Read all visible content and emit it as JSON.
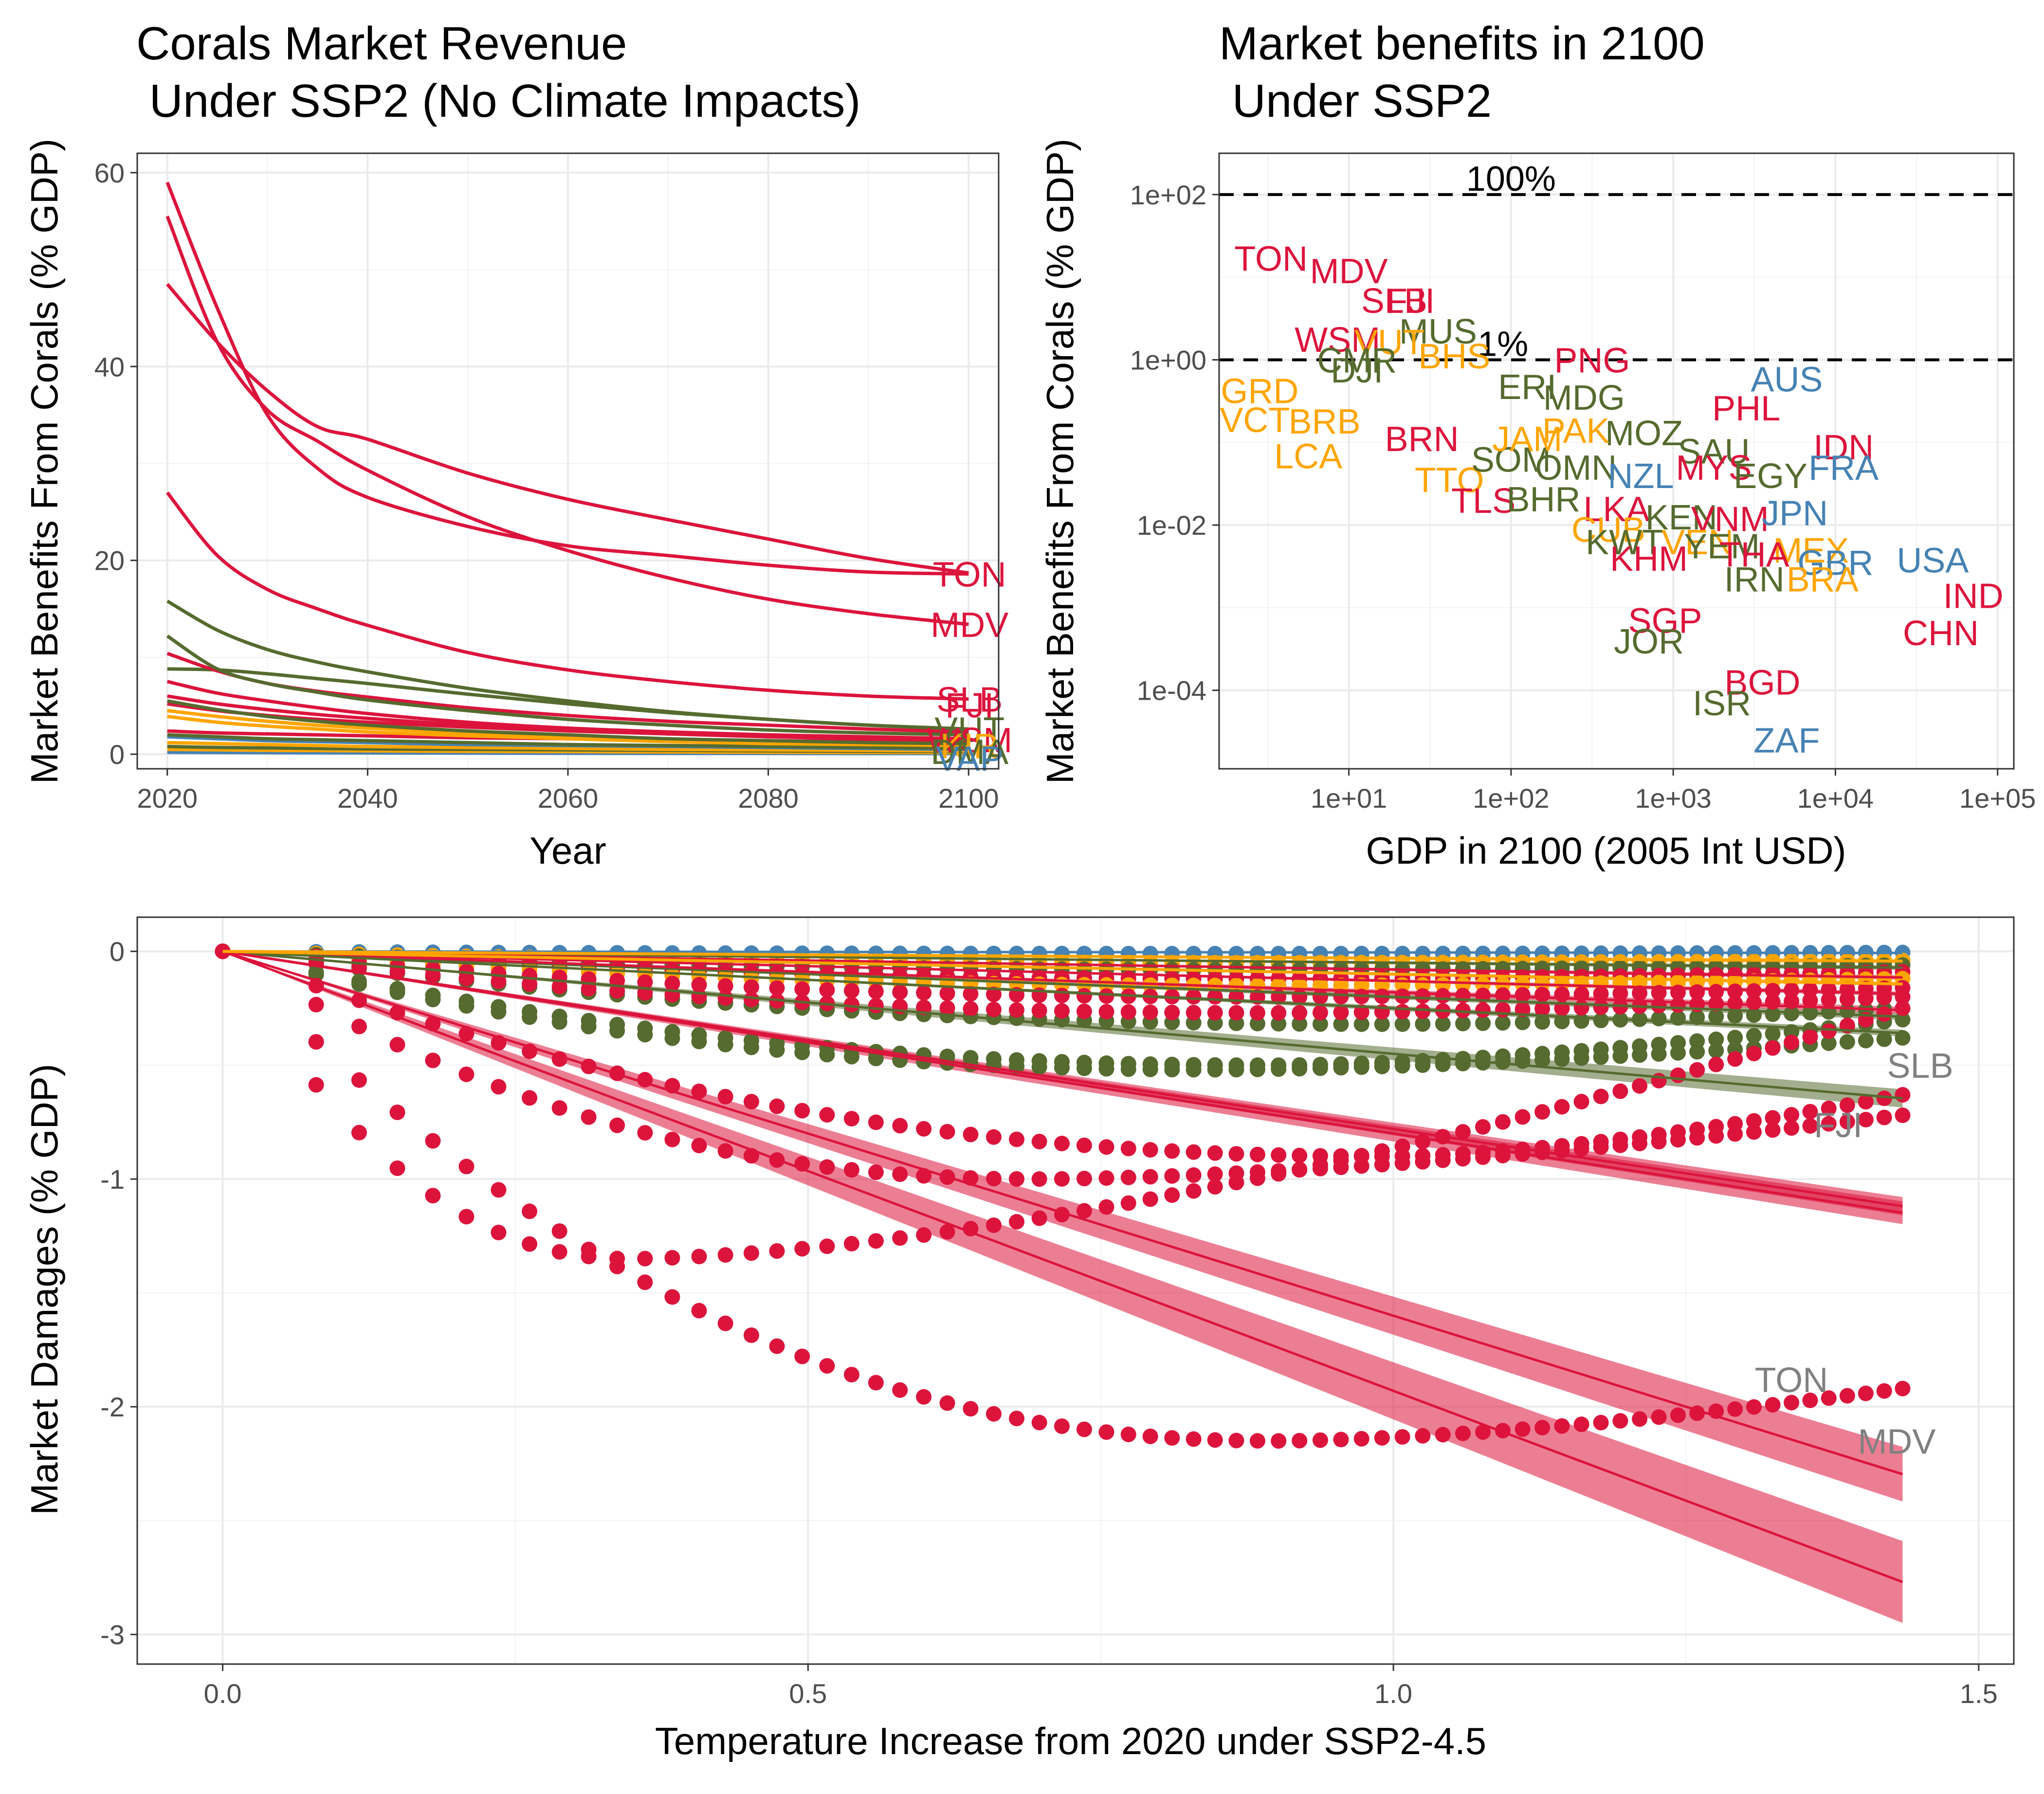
{
  "colors": {
    "crimson": "#dc143c",
    "olive": "#556b2f",
    "orange": "#ffa500",
    "steelblue": "#4682b4",
    "gray": "#808080",
    "ribbon_crimson": "#dc143c",
    "ribbon_olive": "#556b2f"
  },
  "chart_data": [
    {
      "id": "revenue",
      "type": "line",
      "title_line1": "Corals Market Revenue",
      "title_line2": " Under SSP2 (No Climate Impacts)",
      "xlabel": "Year",
      "ylabel": "Market Benefits From Corals (% GDP)",
      "xlim": [
        2017,
        2103
      ],
      "ylim": [
        -1.5,
        62
      ],
      "xticks": [
        2020,
        2040,
        2060,
        2080,
        2100
      ],
      "yticks": [
        0,
        20,
        40,
        60
      ],
      "x": [
        2020,
        2025,
        2030,
        2035,
        2040,
        2050,
        2060,
        2070,
        2080,
        2090,
        2100
      ],
      "grid": true,
      "series": [
        {
          "color": "crimson",
          "values": [
            59,
            46,
            35,
            29.5,
            26.5,
            23.5,
            21.5,
            20.5,
            19.5,
            18.8,
            18.6
          ]
        },
        {
          "color": "crimson",
          "values": [
            55.5,
            42.5,
            35.5,
            32.3,
            29.3,
            24.5,
            21.0,
            18.2,
            16.0,
            14.5,
            13.4
          ]
        },
        {
          "color": "crimson",
          "values": [
            48.5,
            42.5,
            37.5,
            33.8,
            32.5,
            29.0,
            26.3,
            24.2,
            22.2,
            20.2,
            18.7
          ]
        },
        {
          "color": "crimson",
          "values": [
            27,
            20.5,
            17,
            15,
            13.3,
            10.5,
            8.7,
            7.5,
            6.6,
            6.0,
            5.7
          ]
        },
        {
          "color": "olive",
          "values": [
            15.8,
            12.8,
            10.8,
            9.5,
            8.5,
            6.8,
            5.5,
            4.4,
            3.6,
            3.0,
            2.6
          ]
        },
        {
          "color": "olive",
          "values": [
            12.2,
            8.8,
            7.3,
            6.4,
            5.6,
            4.5,
            3.6,
            3.0,
            2.5,
            2.2,
            2.0
          ]
        },
        {
          "color": "crimson",
          "values": [
            10.4,
            8.6,
            7.3,
            6.5,
            5.9,
            4.8,
            4.0,
            3.4,
            3.0,
            2.6,
            2.3
          ]
        },
        {
          "color": "olive",
          "values": [
            8.8,
            8.7,
            8.3,
            7.8,
            7.3,
            6.2,
            5.2,
            4.3,
            3.6,
            3.0,
            2.6
          ]
        },
        {
          "color": "crimson",
          "values": [
            7.5,
            6.3,
            5.5,
            4.8,
            4.2,
            3.3,
            2.7,
            2.3,
            2.0,
            1.8,
            1.6
          ]
        },
        {
          "color": "crimson",
          "values": [
            6.0,
            5.2,
            4.6,
            4.1,
            3.7,
            3.0,
            2.5,
            2.1,
            1.8,
            1.6,
            1.5
          ]
        },
        {
          "color": "olive",
          "values": [
            5.5,
            4.6,
            3.9,
            3.4,
            3.0,
            2.4,
            2.0,
            1.6,
            1.4,
            1.2,
            1.1
          ]
        },
        {
          "color": "crimson",
          "values": [
            5.2,
            4.5,
            4.0,
            3.6,
            3.3,
            2.8,
            2.4,
            2.1,
            1.9,
            1.7,
            1.6
          ]
        },
        {
          "color": "orange",
          "values": [
            4.5,
            3.9,
            3.4,
            3.0,
            2.7,
            2.2,
            1.8,
            1.5,
            1.3,
            1.1,
            1.0
          ]
        },
        {
          "color": "orange",
          "values": [
            3.9,
            3.3,
            2.9,
            2.6,
            2.3,
            1.9,
            1.6,
            1.3,
            1.1,
            1.0,
            0.9
          ]
        },
        {
          "color": "crimson",
          "values": [
            2.4,
            2.2,
            2.1,
            2.0,
            1.9,
            1.7,
            1.6,
            1.5,
            1.4,
            1.3,
            1.2
          ]
        },
        {
          "color": "olive",
          "values": [
            2.0,
            1.8,
            1.6,
            1.5,
            1.4,
            1.2,
            1.0,
            0.9,
            0.8,
            0.7,
            0.6
          ]
        },
        {
          "color": "steelblue",
          "values": [
            1.8,
            1.6,
            1.4,
            1.3,
            1.2,
            1.0,
            0.9,
            0.8,
            0.7,
            0.6,
            0.5
          ]
        },
        {
          "color": "orange",
          "values": [
            1.2,
            1.1,
            1.0,
            0.9,
            0.8,
            0.7,
            0.6,
            0.5,
            0.45,
            0.4,
            0.35
          ]
        },
        {
          "color": "olive",
          "values": [
            0.8,
            0.7,
            0.65,
            0.6,
            0.55,
            0.5,
            0.45,
            0.4,
            0.35,
            0.3,
            0.28
          ]
        },
        {
          "color": "orange",
          "values": [
            0.5,
            0.45,
            0.4,
            0.38,
            0.35,
            0.3,
            0.27,
            0.24,
            0.2,
            0.18,
            0.16
          ]
        },
        {
          "color": "steelblue",
          "values": [
            0.2,
            0.18,
            0.16,
            0.15,
            0.14,
            0.12,
            0.1,
            0.09,
            0.08,
            0.07,
            0.06
          ]
        }
      ],
      "end_labels": [
        {
          "text": "TON",
          "x": 2100,
          "y": 18.6,
          "color": "crimson"
        },
        {
          "text": "MDV",
          "x": 2100,
          "y": 13.4,
          "color": "crimson"
        },
        {
          "text": "SLB",
          "x": 2100,
          "y": 5.7,
          "color": "crimson"
        },
        {
          "text": "FJI",
          "x": 2100,
          "y": 5.1,
          "color": "crimson"
        },
        {
          "text": "VUT",
          "x": 2100,
          "y": 2.6,
          "color": "olive"
        },
        {
          "text": "WSM",
          "x": 2100,
          "y": 1.5,
          "color": "crimson"
        },
        {
          "text": "KIR",
          "x": 2100,
          "y": 0.9,
          "color": "orange"
        },
        {
          "text": "DMA",
          "x": 2100,
          "y": 0.3,
          "color": "olive"
        },
        {
          "text": "VAP",
          "x": 2100,
          "y": -0.4,
          "color": "steelblue"
        }
      ]
    },
    {
      "id": "benefits",
      "type": "scatter",
      "title_line1": "Market benefits in 2100",
      "title_line2": " Under SSP2",
      "xlabel": "GDP in 2100 (2005 Int USD)",
      "ylabel": "Market Benefits From Corals (% GDP)",
      "x_scale": "log10",
      "y_scale": "log10",
      "xlim_log10": [
        0.2,
        5.1
      ],
      "ylim_log10": [
        -4.95,
        2.5
      ],
      "xticks_log10": [
        1,
        2,
        3,
        4,
        5
      ],
      "xtick_labels": [
        "1e+01",
        "1e+02",
        "1e+03",
        "1e+04",
        "1e+05"
      ],
      "yticks_log10": [
        -4,
        -2,
        0,
        2
      ],
      "ytick_labels": [
        "1e-04",
        "1e-02",
        "1e+00",
        "1e+02"
      ],
      "grid": true,
      "reference_lines": [
        {
          "log10_y": 2,
          "label": "100%",
          "label_log10_x": 2.0
        },
        {
          "log10_y": 0,
          "label": "1%",
          "label_log10_x": 1.95
        }
      ],
      "points": [
        {
          "text": "TON",
          "lx": 0.52,
          "ly": 1.23,
          "color": "crimson"
        },
        {
          "text": "MDV",
          "lx": 1.0,
          "ly": 1.08,
          "color": "crimson"
        },
        {
          "text": "SLB",
          "lx": 1.28,
          "ly": 0.72,
          "color": "crimson"
        },
        {
          "text": "FJI",
          "lx": 1.38,
          "ly": 0.72,
          "color": "crimson"
        },
        {
          "text": "MUS",
          "lx": 1.55,
          "ly": 0.35,
          "color": "olive"
        },
        {
          "text": "WSM",
          "lx": 0.93,
          "ly": 0.25,
          "color": "crimson"
        },
        {
          "text": "VUT",
          "lx": 1.25,
          "ly": 0.22,
          "color": "orange"
        },
        {
          "text": "BHS",
          "lx": 1.65,
          "ly": 0.05,
          "color": "orange"
        },
        {
          "text": "CMR",
          "lx": 1.05,
          "ly": 0.0,
          "color": "olive"
        },
        {
          "text": "DJI",
          "lx": 1.05,
          "ly": -0.12,
          "color": "olive"
        },
        {
          "text": "PNG",
          "lx": 2.5,
          "ly": 0.0,
          "color": "crimson"
        },
        {
          "text": "AUS",
          "lx": 3.7,
          "ly": -0.23,
          "color": "steelblue"
        },
        {
          "text": "GRD",
          "lx": 0.45,
          "ly": -0.37,
          "color": "orange"
        },
        {
          "text": "VCT",
          "lx": 0.42,
          "ly": -0.72,
          "color": "orange"
        },
        {
          "text": "BRB",
          "lx": 0.85,
          "ly": -0.74,
          "color": "orange"
        },
        {
          "text": "LCA",
          "lx": 0.75,
          "ly": -1.16,
          "color": "orange"
        },
        {
          "text": "BRN",
          "lx": 1.45,
          "ly": -0.95,
          "color": "crimson"
        },
        {
          "text": "TTO",
          "lx": 1.62,
          "ly": -1.45,
          "color": "orange"
        },
        {
          "text": "TLS",
          "lx": 1.83,
          "ly": -1.7,
          "color": "crimson"
        },
        {
          "text": "ERI",
          "lx": 2.1,
          "ly": -0.32,
          "color": "olive"
        },
        {
          "text": "MDG",
          "lx": 2.45,
          "ly": -0.45,
          "color": "olive"
        },
        {
          "text": "PHL",
          "lx": 3.45,
          "ly": -0.58,
          "color": "crimson"
        },
        {
          "text": "IDN",
          "lx": 4.05,
          "ly": -1.05,
          "color": "crimson"
        },
        {
          "text": "FRA",
          "lx": 4.05,
          "ly": -1.3,
          "color": "steelblue"
        },
        {
          "text": "MOZ",
          "lx": 2.82,
          "ly": -0.88,
          "color": "olive"
        },
        {
          "text": "SAU",
          "lx": 3.25,
          "ly": -1.1,
          "color": "olive"
        },
        {
          "text": "SOM",
          "lx": 2.0,
          "ly": -1.2,
          "color": "olive"
        },
        {
          "text": "OMN",
          "lx": 2.4,
          "ly": -1.3,
          "color": "olive"
        },
        {
          "text": "NZL",
          "lx": 2.8,
          "ly": -1.4,
          "color": "steelblue"
        },
        {
          "text": "MYS",
          "lx": 3.25,
          "ly": -1.3,
          "color": "crimson"
        },
        {
          "text": "EGY",
          "lx": 3.6,
          "ly": -1.4,
          "color": "olive"
        },
        {
          "text": "JAM",
          "lx": 2.1,
          "ly": -0.95,
          "color": "orange"
        },
        {
          "text": "PAK",
          "lx": 2.4,
          "ly": -0.85,
          "color": "orange"
        },
        {
          "text": "BHR",
          "lx": 2.2,
          "ly": -1.68,
          "color": "olive"
        },
        {
          "text": "LKA",
          "lx": 2.65,
          "ly": -1.8,
          "color": "crimson"
        },
        {
          "text": "KEN",
          "lx": 3.05,
          "ly": -1.9,
          "color": "olive"
        },
        {
          "text": "VNM",
          "lx": 3.35,
          "ly": -1.92,
          "color": "crimson"
        },
        {
          "text": "JPN",
          "lx": 3.75,
          "ly": -1.85,
          "color": "steelblue"
        },
        {
          "text": "CUB",
          "lx": 2.6,
          "ly": -2.05,
          "color": "orange"
        },
        {
          "text": "KWT",
          "lx": 2.7,
          "ly": -2.2,
          "color": "olive"
        },
        {
          "text": "VEN",
          "lx": 3.15,
          "ly": -2.2,
          "color": "orange"
        },
        {
          "text": "YEM",
          "lx": 3.3,
          "ly": -2.25,
          "color": "olive"
        },
        {
          "text": "MEX",
          "lx": 3.85,
          "ly": -2.3,
          "color": "orange"
        },
        {
          "text": "THA",
          "lx": 3.5,
          "ly": -2.35,
          "color": "crimson"
        },
        {
          "text": "GBR",
          "lx": 4.0,
          "ly": -2.45,
          "color": "steelblue"
        },
        {
          "text": "USA",
          "lx": 4.6,
          "ly": -2.42,
          "color": "steelblue"
        },
        {
          "text": "KHM",
          "lx": 2.85,
          "ly": -2.4,
          "color": "crimson"
        },
        {
          "text": "IRN",
          "lx": 3.5,
          "ly": -2.65,
          "color": "olive"
        },
        {
          "text": "BRA",
          "lx": 3.92,
          "ly": -2.65,
          "color": "orange"
        },
        {
          "text": "IND",
          "lx": 4.85,
          "ly": -2.85,
          "color": "crimson"
        },
        {
          "text": "CHN",
          "lx": 4.65,
          "ly": -3.3,
          "color": "crimson"
        },
        {
          "text": "SGP",
          "lx": 2.95,
          "ly": -3.15,
          "color": "crimson"
        },
        {
          "text": "JOR",
          "lx": 2.85,
          "ly": -3.4,
          "color": "olive"
        },
        {
          "text": "BGD",
          "lx": 3.55,
          "ly": -3.9,
          "color": "crimson"
        },
        {
          "text": "ISR",
          "lx": 3.3,
          "ly": -4.15,
          "color": "olive"
        },
        {
          "text": "ZAF",
          "lx": 3.7,
          "ly": -4.6,
          "color": "steelblue"
        }
      ]
    },
    {
      "id": "damages",
      "type": "scatter",
      "xlabel": "Temperature Increase from 2020 under SSP2-4.5",
      "ylabel": "Market Damages (% GDP)",
      "xlim": [
        -0.073,
        1.53
      ],
      "ylim": [
        -3.13,
        0.15
      ],
      "xticks": [
        0.0,
        0.5,
        1.0,
        1.5
      ],
      "xtick_labels": [
        "0.0",
        "0.5",
        "1.0",
        "1.5"
      ],
      "yticks": [
        0,
        -1,
        -2,
        -3
      ],
      "ytick_labels": [
        "0",
        "-1",
        "-2",
        "-3"
      ],
      "grid": true,
      "x_max": 1.435,
      "series": [
        {
          "label": "TON",
          "color": "crimson",
          "min": -2.15,
          "xmin": 0.9,
          "end": -1.92,
          "slope": -1.6,
          "ribbon": 0.12
        },
        {
          "label": "MDV",
          "color": "crimson",
          "min": -1.35,
          "xmin": 0.35,
          "end": -0.25,
          "slope": -1.93,
          "ribbon": 0.18
        },
        {
          "label": "",
          "color": "crimson",
          "min": -1.0,
          "xmin": 0.7,
          "end": -0.72,
          "slope": -0.8,
          "ribbon": 0.05
        },
        {
          "label": "FJI",
          "color": "crimson",
          "min": -0.9,
          "xmin": 1.0,
          "end": -0.63,
          "slope": -0.78,
          "ribbon": 0.04
        },
        {
          "label": "SLB",
          "color": "olive",
          "min": -0.52,
          "xmin": 0.85,
          "end": -0.38,
          "slope": -0.45,
          "ribbon": 0.04
        },
        {
          "label": "",
          "color": "olive",
          "min": -0.5,
          "xmin": 0.9,
          "end": -0.3,
          "slope": -0.25,
          "ribbon": 0.015
        },
        {
          "label": "",
          "color": "crimson",
          "min": -0.27,
          "xmin": 0.9,
          "end": -0.2,
          "slope": -0.18,
          "ribbon": 0.015
        },
        {
          "label": "",
          "color": "olive",
          "min": -0.32,
          "xmin": 1.0,
          "end": -0.25,
          "slope": -0.2,
          "ribbon": 0.015
        },
        {
          "label": "",
          "color": "crimson",
          "min": -0.2,
          "xmin": 0.9,
          "end": -0.16,
          "slope": -0.13,
          "ribbon": 0.01
        },
        {
          "label": "",
          "color": "orange",
          "min": -0.15,
          "xmin": 0.9,
          "end": -0.12,
          "slope": -0.1,
          "ribbon": 0.01
        },
        {
          "label": "",
          "color": "crimson",
          "min": -0.12,
          "xmin": 0.9,
          "end": -0.09,
          "slope": -0.08,
          "ribbon": 0.01
        },
        {
          "label": "",
          "color": "olive",
          "min": -0.08,
          "xmin": 0.9,
          "end": -0.06,
          "slope": -0.05,
          "ribbon": 0.01
        },
        {
          "label": "",
          "color": "orange",
          "min": -0.05,
          "xmin": 0.9,
          "end": -0.04,
          "slope": -0.03,
          "ribbon": 0.01
        },
        {
          "label": "",
          "color": "steelblue",
          "min": -0.01,
          "xmin": 0.9,
          "end": -0.005,
          "slope": -0.005,
          "ribbon": 0.003
        }
      ],
      "end_labels": [
        {
          "text": "SLB",
          "x": 1.45,
          "y": -0.5,
          "color": "gray"
        },
        {
          "text": "FJI",
          "x": 1.38,
          "y": -0.76,
          "color": "gray"
        },
        {
          "text": "TON",
          "x": 1.34,
          "y": -1.88,
          "color": "gray"
        },
        {
          "text": "MDV",
          "x": 1.43,
          "y": -2.15,
          "color": "gray"
        }
      ]
    }
  ]
}
